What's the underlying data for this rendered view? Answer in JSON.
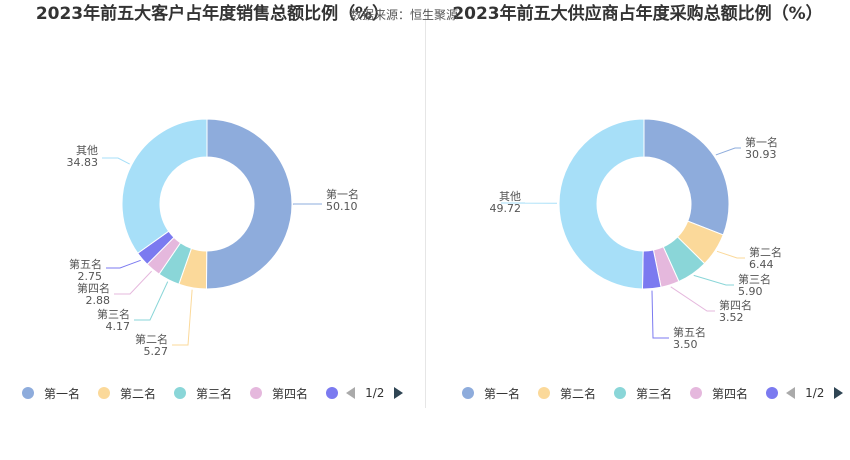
{
  "source_label": "数据来源：恒生聚源",
  "pager_text": "1/2",
  "chart_data": [
    {
      "type": "pie",
      "title": "2023年前五大客户占年度销售总额比例（%）",
      "categories": [
        "第一名",
        "第二名",
        "第三名",
        "第四名",
        "第五名",
        "其他"
      ],
      "values": [
        50.1,
        5.27,
        4.17,
        2.88,
        2.75,
        34.83
      ],
      "value_labels": [
        "50.10",
        "5.27",
        "4.17",
        "2.88",
        "2.75",
        "34.83"
      ],
      "colors": [
        "#8eacdc",
        "#fbd99a",
        "#8ad6d8",
        "#e5b8dd",
        "#7b7af0",
        "#a7dff8"
      ],
      "legend_visible": [
        "第一名",
        "第二名",
        "第三名",
        "第四名"
      ],
      "legend_position": "bottom"
    },
    {
      "type": "pie",
      "title": "2023年前五大供应商占年度采购总额比例（%）",
      "categories": [
        "第一名",
        "第二名",
        "第三名",
        "第四名",
        "第五名",
        "其他"
      ],
      "values": [
        30.93,
        6.44,
        5.9,
        3.52,
        3.5,
        49.72
      ],
      "value_labels": [
        "30.93",
        "6.44",
        "5.90",
        "3.52",
        "3.50",
        "49.72"
      ],
      "colors": [
        "#8eacdc",
        "#fbd99a",
        "#8ad6d8",
        "#e5b8dd",
        "#7b7af0",
        "#a7dff8"
      ],
      "legend_visible": [
        "第一名",
        "第二名",
        "第三名",
        "第四名"
      ],
      "legend_position": "bottom"
    }
  ]
}
